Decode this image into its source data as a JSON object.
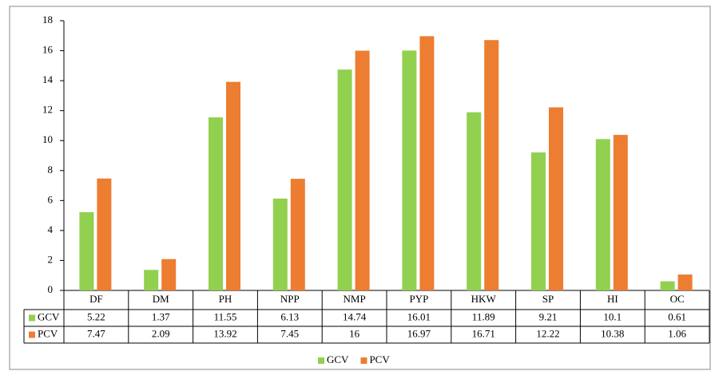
{
  "chart_data": {
    "type": "bar",
    "categories": [
      "DF",
      "DM",
      "PH",
      "NPP",
      "NMP",
      "PYP",
      "HKW",
      "SP",
      "HI",
      "OC"
    ],
    "series": [
      {
        "name": "GCV",
        "color": "#92d050",
        "values": [
          5.22,
          1.37,
          11.55,
          6.13,
          14.74,
          16.01,
          11.89,
          9.21,
          10.1,
          0.61
        ]
      },
      {
        "name": "PCV",
        "color": "#ed7d31",
        "values": [
          7.47,
          2.09,
          13.92,
          7.45,
          16,
          16.97,
          16.71,
          12.22,
          10.38,
          1.06
        ]
      }
    ],
    "ylim": [
      0,
      18
    ],
    "yticks": [
      0,
      2,
      4,
      6,
      8,
      10,
      12,
      14,
      16,
      18
    ]
  }
}
